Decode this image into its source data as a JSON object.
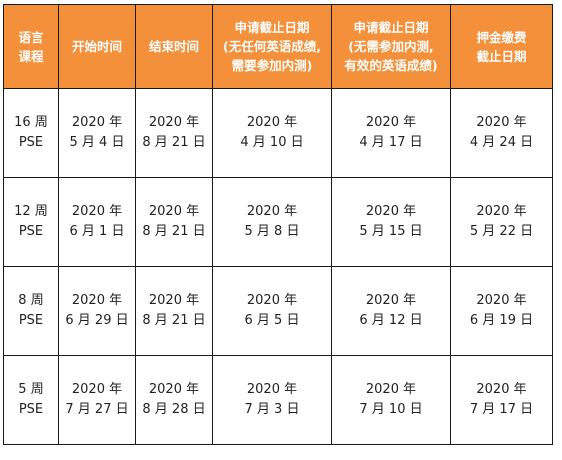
{
  "headers": [
    [
      "语言",
      "课程"
    ],
    [
      "开始时间"
    ],
    [
      "结束时间"
    ],
    [
      "申请截止日期",
      "(无任何英语成绩,",
      "需要参加内测)"
    ],
    [
      "申请截止日期",
      "(无需参加内测,",
      "有效的英语成绩)"
    ],
    [
      "押金缴费",
      "截止日期"
    ]
  ],
  "rows": [
    {
      "course": [
        "16 周",
        "PSE"
      ],
      "start": [
        "2020 年",
        "5 月 4 日"
      ],
      "end": [
        "2020 年",
        "8 月 21 日"
      ],
      "deadline_test": [
        "2020 年",
        "4 月 10 日"
      ],
      "deadline_score": [
        "2020 年",
        "4 月 17 日"
      ],
      "deposit": [
        "2020 年",
        "4 月 24 日"
      ]
    },
    {
      "course": [
        "12 周",
        "PSE"
      ],
      "start": [
        "2020 年",
        "6 月 1 日"
      ],
      "end": [
        "2020 年",
        "8 月 21 日"
      ],
      "deadline_test": [
        "2020 年",
        "5 月 8 日"
      ],
      "deadline_score": [
        "2020 年",
        "5 月 15 日"
      ],
      "deposit": [
        "2020 年",
        "5 月 22 日"
      ]
    },
    {
      "course": [
        "8 周",
        "PSE"
      ],
      "start": [
        "2020 年",
        "6 月 29 日"
      ],
      "end": [
        "2020 年",
        "8 月 21 日"
      ],
      "deadline_test": [
        "2020 年",
        "6 月 5 日"
      ],
      "deadline_score": [
        "2020 年",
        "6 月 12 日"
      ],
      "deposit": [
        "2020 年",
        "6 月 19 日"
      ]
    },
    {
      "course": [
        "5 周",
        "PSE"
      ],
      "start": [
        "2020 年",
        "7 月 27 日"
      ],
      "end": [
        "2020 年",
        "8 月 28 日"
      ],
      "deadline_test": [
        "2020 年",
        "7 月 3 日"
      ],
      "deadline_score": [
        "2020 年",
        "7 月 10 日"
      ],
      "deposit": [
        "2020 年",
        "7 月 17 日"
      ]
    }
  ],
  "colors": {
    "header_bg": "#f5903a",
    "header_text": "#ffffff",
    "border": "#1a1a1a",
    "body_text": "#222222"
  }
}
